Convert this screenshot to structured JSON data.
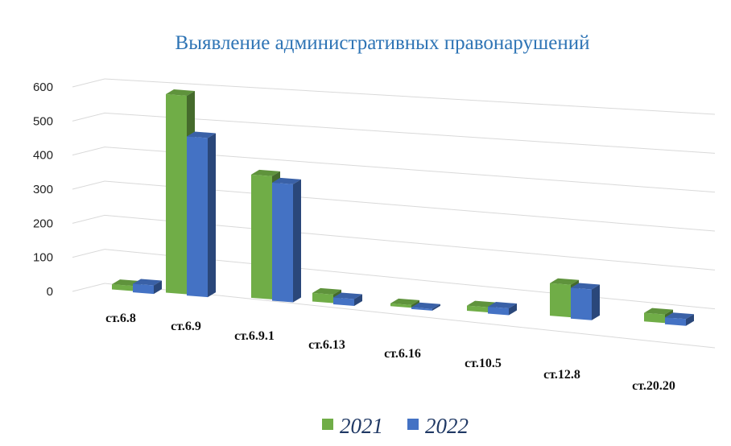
{
  "chart_data": {
    "type": "bar",
    "title": "Выявление административных правонарушений",
    "categories": [
      "ст.6.8",
      "ст.6.9",
      "ст.6.9.1",
      "ст.6.13",
      "ст.6.16",
      "ст.10.5",
      "ст.12.8",
      "ст.20.20"
    ],
    "series": [
      {
        "name": "2021",
        "color": "#70ad47",
        "values": [
          15,
          580,
          360,
          25,
          8,
          15,
          95,
          25
        ]
      },
      {
        "name": "2022",
        "color": "#4472c4",
        "values": [
          25,
          465,
          345,
          20,
          5,
          20,
          90,
          20
        ]
      }
    ],
    "yticks": [
      "0",
      "100",
      "200",
      "300",
      "400",
      "500",
      "600"
    ],
    "ylim": [
      0,
      600
    ],
    "grid": true,
    "legend_position": "bottom",
    "style": "3d-clustered-column"
  }
}
